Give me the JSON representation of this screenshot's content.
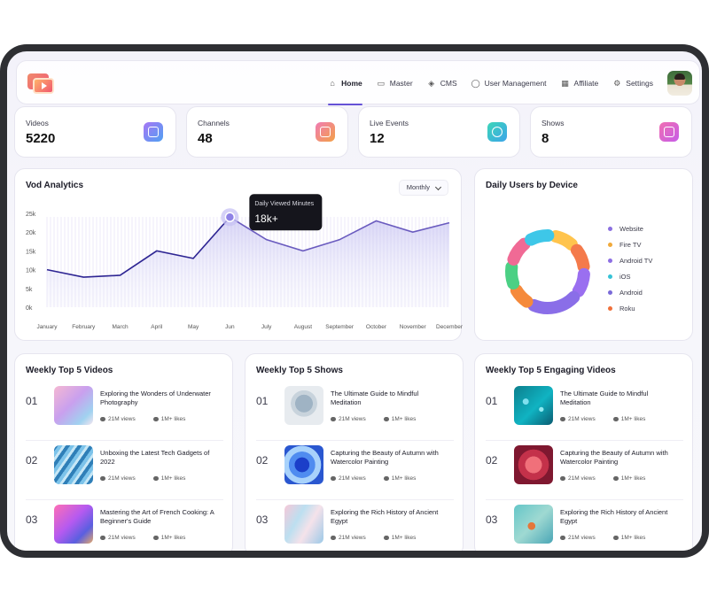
{
  "nav": {
    "items": [
      {
        "label": "Home",
        "icon": "home-icon",
        "active": true
      },
      {
        "label": "Master",
        "icon": "folder-icon",
        "active": false
      },
      {
        "label": "CMS",
        "icon": "layers-icon",
        "active": false
      },
      {
        "label": "User Management",
        "icon": "user-icon",
        "active": false
      },
      {
        "label": "Affiliate",
        "icon": "grid-icon",
        "active": false
      },
      {
        "label": "Settings",
        "icon": "gear-icon",
        "active": false
      }
    ]
  },
  "stats": [
    {
      "label": "Videos",
      "value": "5220",
      "icon": "video-camera-icon"
    },
    {
      "label": "Channels",
      "value": "48",
      "icon": "tv-icon"
    },
    {
      "label": "Live Events",
      "value": "12",
      "icon": "broadcast-icon"
    },
    {
      "label": "Shows",
      "value": "8",
      "icon": "film-icon"
    }
  ],
  "vod": {
    "title": "Vod Analytics",
    "period": "Monthly",
    "tooltip_label": "Daily Viewed Minutes",
    "tooltip_value": "18k+"
  },
  "chart_data": {
    "type": "line",
    "categories": [
      "January",
      "February",
      "March",
      "April",
      "May",
      "Jun",
      "July",
      "August",
      "September",
      "October",
      "November",
      "December"
    ],
    "values": [
      10,
      8,
      8.5,
      15,
      13,
      24,
      18,
      15,
      18,
      23,
      20,
      22.5
    ],
    "ylim": [
      0,
      25
    ],
    "yticks": [
      "0k",
      "5k",
      "10k",
      "15k",
      "20k",
      "25k"
    ],
    "highlight_index": 5,
    "color": "#3b2f98"
  },
  "devices": {
    "title": "Daily Users by Device",
    "items": [
      {
        "name": "Website",
        "color": "#8b6fe0"
      },
      {
        "name": "Fire TV",
        "color": "#f0a93a"
      },
      {
        "name": "Android TV",
        "color": "#8d6fe3"
      },
      {
        "name": "iOS",
        "color": "#36c3d6"
      },
      {
        "name": "Android",
        "color": "#7a6ad8"
      },
      {
        "name": "Roku",
        "color": "#f0703a"
      }
    ],
    "donut_colors": [
      "#ffc44d",
      "#f47a4b",
      "#9a6ff0",
      "#8a6ee8",
      "#f58a3c",
      "#4bd084",
      "#f06a95",
      "#3ec7e8"
    ]
  },
  "lists": [
    {
      "title": "Weekly Top 5 Videos",
      "items": [
        {
          "rank": "01",
          "title": "Exploring the Wonders of Underwater Photography",
          "views": "21M views",
          "likes": "1M+ likes"
        },
        {
          "rank": "02",
          "title": "Unboxing the Latest Tech Gadgets of 2022",
          "views": "21M views",
          "likes": "1M+ likes"
        },
        {
          "rank": "03",
          "title": "Mastering the Art of French Cooking: A Beginner's Guide",
          "views": "21M views",
          "likes": "1M+ likes"
        }
      ]
    },
    {
      "title": "Weekly Top 5 Shows",
      "items": [
        {
          "rank": "01",
          "title": "The Ultimate Guide to Mindful Meditation",
          "views": "21M views",
          "likes": "1M+ likes"
        },
        {
          "rank": "02",
          "title": "Capturing the Beauty of Autumn with Watercolor Painting",
          "views": "21M views",
          "likes": "1M+ likes"
        },
        {
          "rank": "03",
          "title": "Exploring the Rich History of Ancient Egypt",
          "views": "21M views",
          "likes": "1M+ likes"
        }
      ]
    },
    {
      "title": "Weekly Top 5 Engaging Videos",
      "items": [
        {
          "rank": "01",
          "title": "The Ultimate Guide to Mindful Meditation",
          "views": "21M views",
          "likes": "1M+ likes"
        },
        {
          "rank": "02",
          "title": "Capturing the Beauty of Autumn with Watercolor Painting",
          "views": "21M views",
          "likes": "1M+ likes"
        },
        {
          "rank": "03",
          "title": "Exploring the Rich History of Ancient Egypt",
          "views": "21M views",
          "likes": "1M+ likes"
        }
      ]
    }
  ]
}
